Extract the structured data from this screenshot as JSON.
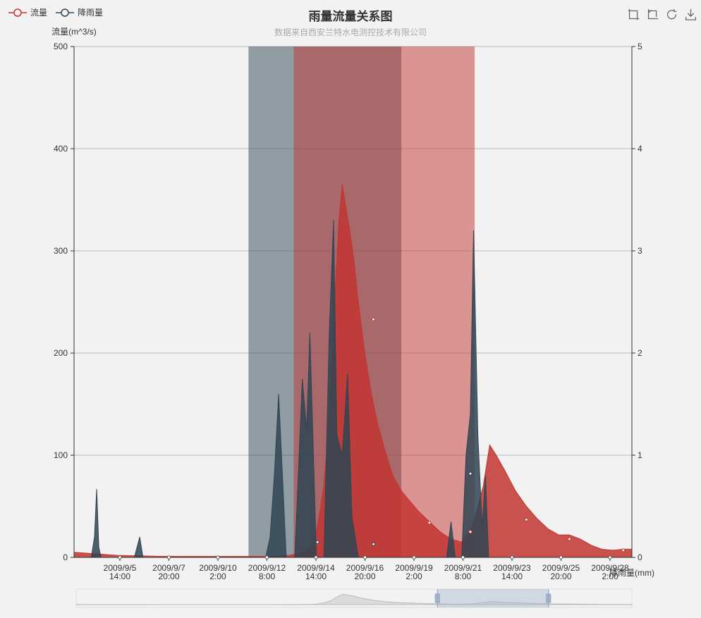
{
  "legend": [
    {
      "label": "流量",
      "color": "#c23531"
    },
    {
      "label": "降雨量",
      "color": "#2f4554"
    }
  ],
  "toolbox": [
    {
      "name": "data-zoom-icon"
    },
    {
      "name": "data-zoom-reset-icon"
    },
    {
      "name": "restore-icon"
    },
    {
      "name": "save-image-icon"
    }
  ],
  "chart_data": {
    "type": "area",
    "title": "雨量流量关系图",
    "subtitle": "数据来自西安兰特水电测控技术有限公司",
    "xAxis": {
      "labels": [
        [
          "2009/9/5",
          "14:00"
        ],
        [
          "2009/9/7",
          "20:00"
        ],
        [
          "2009/9/10",
          "2:00"
        ],
        [
          "2009/9/12",
          "8:00"
        ],
        [
          "2009/9/14",
          "14:00"
        ],
        [
          "2009/9/16",
          "20:00"
        ],
        [
          "2009/9/19",
          "2:00"
        ],
        [
          "2009/9/21",
          "8:00"
        ],
        [
          "2009/9/23",
          "14:00"
        ],
        [
          "2009/9/25",
          "20:00"
        ],
        [
          "2009/9/28",
          "2:00"
        ]
      ],
      "range_days": [
        0,
        25.9
      ]
    },
    "yAxis_left": {
      "name": "流量(m^3/s)",
      "min": 0,
      "max": 500,
      "ticks": [
        0,
        100,
        200,
        300,
        400,
        500
      ]
    },
    "yAxis_right": {
      "name": "降雨量(mm)",
      "min": 0,
      "max": 5,
      "ticks": [
        0,
        1,
        2,
        3,
        4,
        5
      ]
    },
    "grid": true,
    "x_unit": "days from 2009/9/3 0:00 (axis start)",
    "markAreas": [
      {
        "series": "降雨量",
        "from": 8.1,
        "to": 15.2,
        "color": "#2f4554"
      },
      {
        "series": "流量",
        "from": 10.2,
        "to": 18.6,
        "color": "#c23531"
      }
    ],
    "series": [
      {
        "name": "流量",
        "color": "#c23531",
        "points": [
          [
            0,
            5
          ],
          [
            1,
            3.5
          ],
          [
            2,
            2
          ],
          [
            3,
            1.5
          ],
          [
            4,
            1
          ],
          [
            5,
            1
          ],
          [
            6,
            1
          ],
          [
            7,
            1
          ],
          [
            8,
            1
          ],
          [
            9,
            1
          ],
          [
            10,
            2
          ],
          [
            10.5,
            4
          ],
          [
            11,
            10
          ],
          [
            11.3,
            30
          ],
          [
            11.6,
            70
          ],
          [
            11.9,
            150
          ],
          [
            12.1,
            250
          ],
          [
            12.3,
            330
          ],
          [
            12.45,
            365
          ],
          [
            12.6,
            345
          ],
          [
            12.8,
            320
          ],
          [
            13,
            290
          ],
          [
            13.2,
            250
          ],
          [
            13.5,
            200
          ],
          [
            13.8,
            160
          ],
          [
            14.1,
            130
          ],
          [
            14.5,
            100
          ],
          [
            14.8,
            80
          ],
          [
            15.2,
            65
          ],
          [
            15.6,
            55
          ],
          [
            16,
            45
          ],
          [
            16.5,
            35
          ],
          [
            17,
            25
          ],
          [
            17.5,
            18
          ],
          [
            18,
            15
          ],
          [
            18.5,
            30
          ],
          [
            19,
            70
          ],
          [
            19.3,
            110
          ],
          [
            19.6,
            100
          ],
          [
            20,
            85
          ],
          [
            20.5,
            65
          ],
          [
            21,
            50
          ],
          [
            21.5,
            38
          ],
          [
            22,
            28
          ],
          [
            22.5,
            22
          ],
          [
            23,
            22
          ],
          [
            23.5,
            18
          ],
          [
            24,
            12
          ],
          [
            24.5,
            8
          ],
          [
            25,
            7
          ],
          [
            25.5,
            8
          ],
          [
            25.9,
            8
          ],
          [
            26.5,
            2
          ]
        ]
      },
      {
        "name": "降雨量",
        "color": "#2f4554",
        "points": [
          [
            0,
            0
          ],
          [
            0.8,
            0
          ],
          [
            0.95,
            0.2
          ],
          [
            1.05,
            0.67
          ],
          [
            1.15,
            0.1
          ],
          [
            1.25,
            0
          ],
          [
            2.8,
            0
          ],
          [
            3.05,
            0.2
          ],
          [
            3.2,
            0
          ],
          [
            8.9,
            0
          ],
          [
            9.1,
            0.2
          ],
          [
            9.3,
            0.8
          ],
          [
            9.5,
            1.6
          ],
          [
            9.7,
            0.7
          ],
          [
            9.85,
            0
          ],
          [
            10.25,
            0
          ],
          [
            10.45,
            1.0
          ],
          [
            10.6,
            1.75
          ],
          [
            10.8,
            1.25
          ],
          [
            10.95,
            2.2
          ],
          [
            11.1,
            1.1
          ],
          [
            11.25,
            0
          ],
          [
            11.6,
            0
          ],
          [
            11.85,
            2.2
          ],
          [
            12.05,
            3.3
          ],
          [
            12.2,
            1.2
          ],
          [
            12.45,
            1.0
          ],
          [
            12.7,
            1.8
          ],
          [
            12.9,
            0.4
          ],
          [
            13.2,
            0
          ],
          [
            17.3,
            0
          ],
          [
            17.5,
            0.35
          ],
          [
            17.7,
            0
          ],
          [
            18.0,
            0
          ],
          [
            18.2,
            1.0
          ],
          [
            18.4,
            1.4
          ],
          [
            18.55,
            3.2
          ],
          [
            18.75,
            1.2
          ],
          [
            18.95,
            0.3
          ],
          [
            19.1,
            0.8
          ],
          [
            19.25,
            0
          ],
          [
            20,
            0
          ],
          [
            26.5,
            0
          ]
        ]
      }
    ],
    "markers": [
      {
        "series": "流量",
        "x": 13.9,
        "y": 233
      },
      {
        "series": "流量",
        "x": 18.4,
        "y": 25
      },
      {
        "series": "降雨量",
        "x": 18.4,
        "y": 0.82
      },
      {
        "series": "降雨量",
        "x": 11.3,
        "y": 0.15
      },
      {
        "series": "降雨量",
        "x": 13.9,
        "y": 0.13
      },
      {
        "series": "流量",
        "x": 23,
        "y": 18
      },
      {
        "series": "流量",
        "x": 16.5,
        "y": 34
      },
      {
        "series": "流量",
        "x": 21.0,
        "y": 37
      },
      {
        "series": "流量",
        "x": 25.5,
        "y": 7
      }
    ],
    "dataZoom": {
      "start_fraction": 0.65,
      "end_fraction": 0.85
    }
  }
}
